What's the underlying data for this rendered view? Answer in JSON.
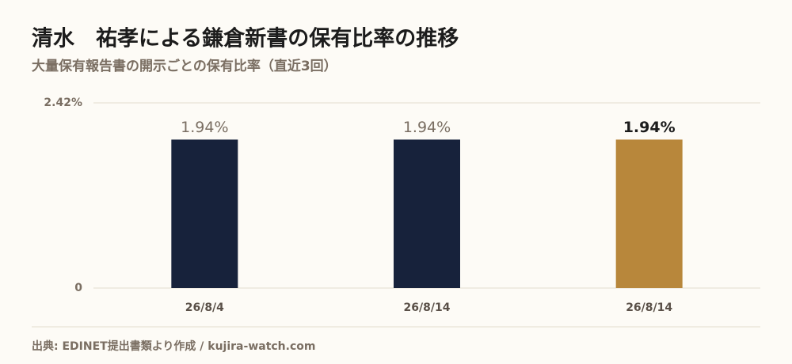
{
  "chart_data": {
    "type": "bar",
    "title": "清水　祐孝による鎌倉新書の保有比率の推移",
    "subtitle": "大量保有報告書の開示ごとの保有比率（直近3回）",
    "categories": [
      "26/8/4",
      "26/8/14",
      "26/8/14"
    ],
    "values": [
      1.94,
      1.94,
      1.94
    ],
    "value_labels": [
      "1.94%",
      "1.94%",
      "1.94%"
    ],
    "colors": [
      "#17223b",
      "#17223b",
      "#b8873b"
    ],
    "highlight": 2,
    "ylim": [
      0,
      2.42
    ],
    "yticks": [
      0,
      {
        "value": 2.42,
        "label": "2.42%"
      }
    ],
    "grid": true,
    "source": "出典: EDINET提出書類より作成 / kujira-watch.com"
  }
}
